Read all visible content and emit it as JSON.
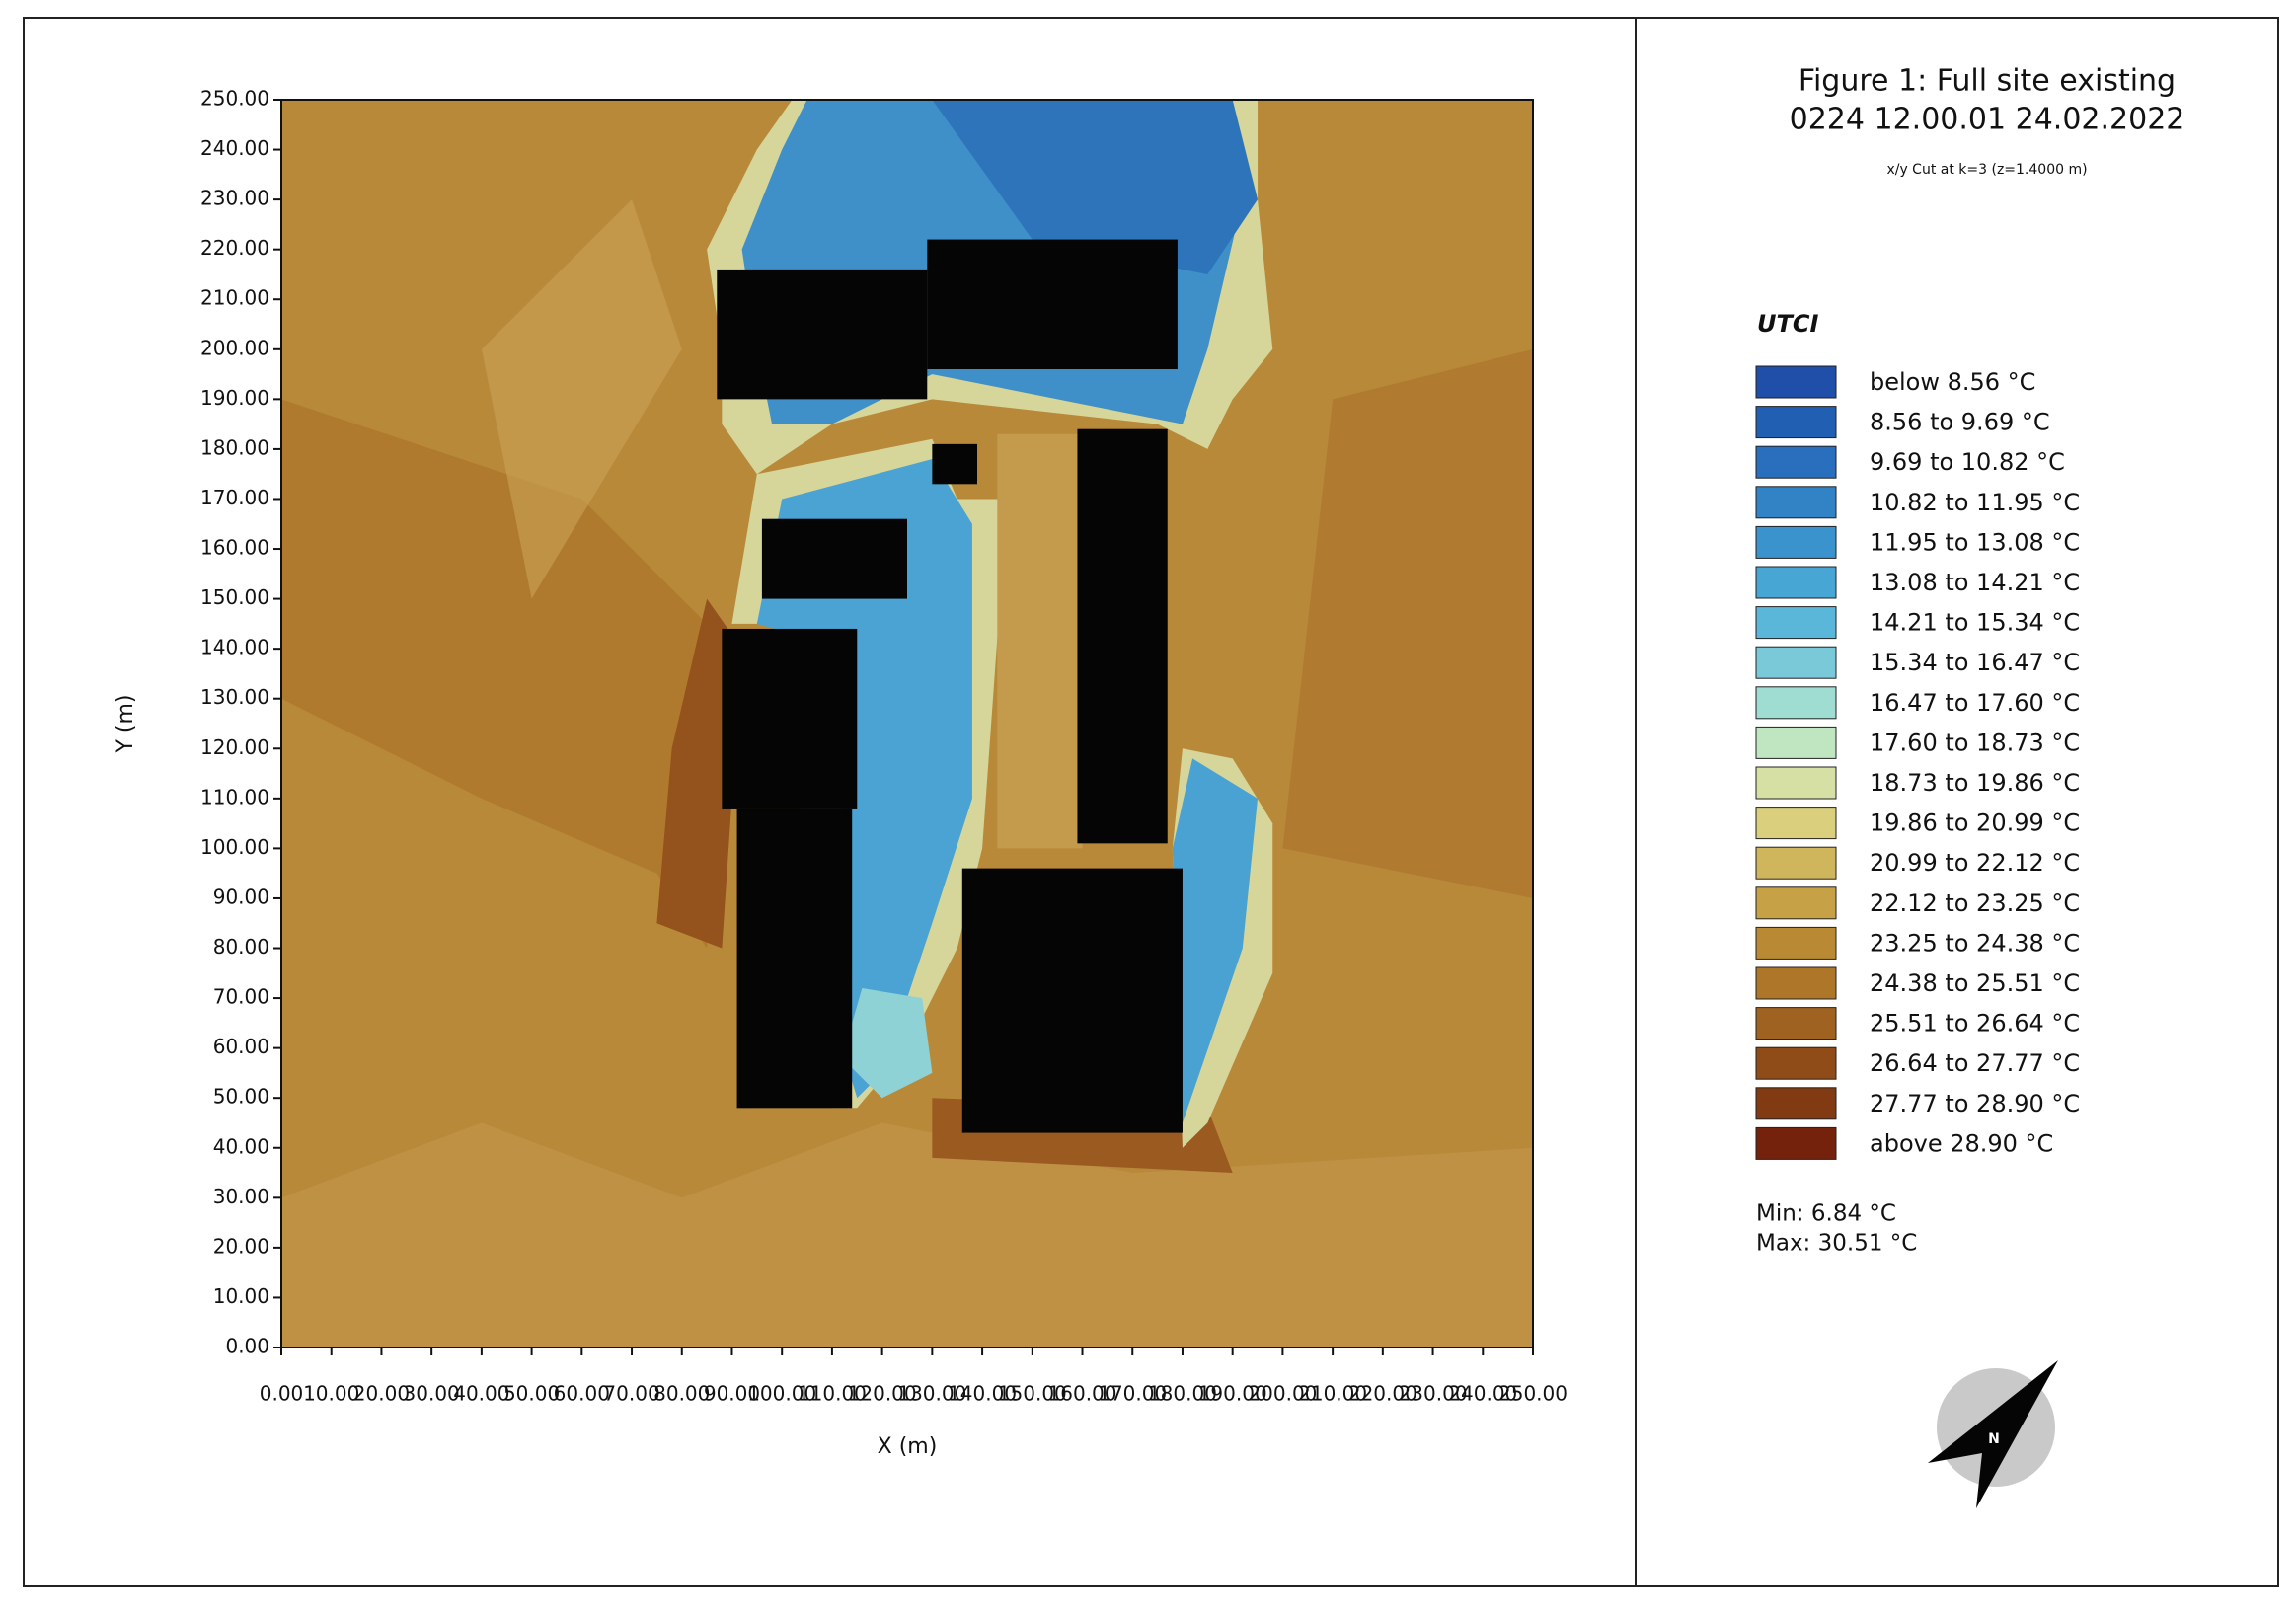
{
  "chart_data": {
    "type": "heatmap",
    "title_lines": [
      "Figure 1: Full site existing",
      "0224 12.00.01 24.02.2022"
    ],
    "subtitle": "x/y Cut at k=3 (z=1.4000 m)",
    "xlabel": "X (m)",
    "ylabel": "Y (m)",
    "xlim": [
      0,
      250
    ],
    "ylim": [
      0,
      250
    ],
    "xticks": [
      {
        "value": 0,
        "label": "0.00"
      },
      {
        "value": 10,
        "label": "10.00"
      },
      {
        "value": 20,
        "label": "20.00"
      },
      {
        "value": 30,
        "label": "30.00"
      },
      {
        "value": 40,
        "label": "40.00"
      },
      {
        "value": 50,
        "label": "50.00"
      },
      {
        "value": 60,
        "label": "60.00"
      },
      {
        "value": 70,
        "label": "70.00"
      },
      {
        "value": 80,
        "label": "80.00"
      },
      {
        "value": 90,
        "label": "90.00"
      },
      {
        "value": 100,
        "label": "100.00"
      },
      {
        "value": 110,
        "label": "110.00"
      },
      {
        "value": 120,
        "label": "120.00"
      },
      {
        "value": 130,
        "label": "130.00"
      },
      {
        "value": 140,
        "label": "140.00"
      },
      {
        "value": 150,
        "label": "150.00"
      },
      {
        "value": 160,
        "label": "160.00"
      },
      {
        "value": 170,
        "label": "170.00"
      },
      {
        "value": 180,
        "label": "180.00"
      },
      {
        "value": 190,
        "label": "190.00"
      },
      {
        "value": 200,
        "label": "200.00"
      },
      {
        "value": 210,
        "label": "210.00"
      },
      {
        "value": 220,
        "label": "220.00"
      },
      {
        "value": 230,
        "label": "230.00"
      },
      {
        "value": 240,
        "label": "240.00"
      },
      {
        "value": 250,
        "label": "250.00"
      }
    ],
    "yticks": [
      {
        "value": 0,
        "label": "0.00"
      },
      {
        "value": 10,
        "label": "10.00"
      },
      {
        "value": 20,
        "label": "20.00"
      },
      {
        "value": 30,
        "label": "30.00"
      },
      {
        "value": 40,
        "label": "40.00"
      },
      {
        "value": 50,
        "label": "50.00"
      },
      {
        "value": 60,
        "label": "60.00"
      },
      {
        "value": 70,
        "label": "70.00"
      },
      {
        "value": 80,
        "label": "80.00"
      },
      {
        "value": 90,
        "label": "90.00"
      },
      {
        "value": 100,
        "label": "100.00"
      },
      {
        "value": 110,
        "label": "110.00"
      },
      {
        "value": 120,
        "label": "120.00"
      },
      {
        "value": 130,
        "label": "130.00"
      },
      {
        "value": 140,
        "label": "140.00"
      },
      {
        "value": 150,
        "label": "150.00"
      },
      {
        "value": 160,
        "label": "160.00"
      },
      {
        "value": 170,
        "label": "170.00"
      },
      {
        "value": 180,
        "label": "180.00"
      },
      {
        "value": 190,
        "label": "190.00"
      },
      {
        "value": 200,
        "label": "200.00"
      },
      {
        "value": 210,
        "label": "210.00"
      },
      {
        "value": 220,
        "label": "220.00"
      },
      {
        "value": 230,
        "label": "230.00"
      },
      {
        "value": 240,
        "label": "240.00"
      },
      {
        "value": 250,
        "label": "250.00"
      }
    ],
    "legend_title": "UTCI",
    "legend": [
      {
        "label": "below 8.56 °C",
        "color": "#1f4fa8"
      },
      {
        "label": "8.56 to 9.69 °C",
        "color": "#215fb3"
      },
      {
        "label": "9.69 to 10.82 °C",
        "color": "#2a6fbd"
      },
      {
        "label": "10.82 to 11.95 °C",
        "color": "#3282c6"
      },
      {
        "label": "11.95 to 13.08 °C",
        "color": "#3a93cd"
      },
      {
        "label": "13.08 to 14.21 °C",
        "color": "#47a6d4"
      },
      {
        "label": "14.21 to 15.34 °C",
        "color": "#5ab7d9"
      },
      {
        "label": "15.34 to 16.47 °C",
        "color": "#7ac9d9"
      },
      {
        "label": "16.47 to 17.60 °C",
        "color": "#9fdcd2"
      },
      {
        "label": "17.60 to 18.73 °C",
        "color": "#bfe6c1"
      },
      {
        "label": "18.73 to 19.86 °C",
        "color": "#d6e0a4"
      },
      {
        "label": "19.86 to 20.99 °C",
        "color": "#d9cf7d"
      },
      {
        "label": "20.99 to 22.12 °C",
        "color": "#cfb55c"
      },
      {
        "label": "22.12 to 23.25 °C",
        "color": "#c6a145"
      },
      {
        "label": "23.25 to 24.38 °C",
        "color": "#b98a33"
      },
      {
        "label": "24.38 to 25.51 °C",
        "color": "#ad7628"
      },
      {
        "label": "25.51 to 26.64 °C",
        "color": "#9f6220"
      },
      {
        "label": "26.64 to 27.77 °C",
        "color": "#904c18"
      },
      {
        "label": "27.77 to 28.90 °C",
        "color": "#823a12"
      },
      {
        "label": "above 28.90 °C",
        "color": "#74220c"
      }
    ],
    "min_label": "Min: 6.84 °C",
    "max_label": "Max: 30.51 °C",
    "compass_label": "N"
  }
}
